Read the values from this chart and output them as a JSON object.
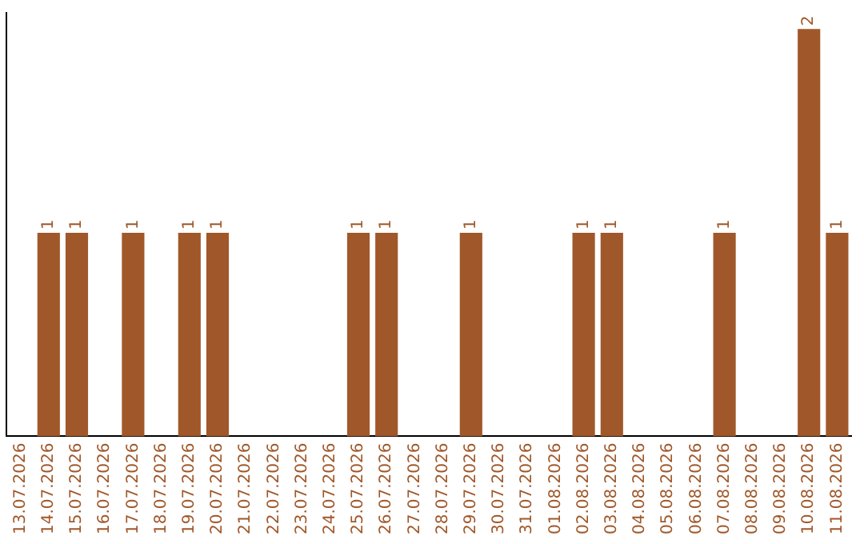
{
  "chart_data": {
    "type": "bar",
    "categories": [
      "13.07.2026",
      "14.07.2026",
      "15.07.2026",
      "16.07.2026",
      "17.07.2026",
      "18.07.2026",
      "19.07.2026",
      "20.07.2026",
      "21.07.2026",
      "22.07.2026",
      "23.07.2026",
      "24.07.2026",
      "25.07.2026",
      "26.07.2026",
      "27.07.2026",
      "28.07.2026",
      "29.07.2026",
      "30.07.2026",
      "31.07.2026",
      "01.08.2026",
      "02.08.2026",
      "03.08.2026",
      "04.08.2026",
      "05.08.2026",
      "06.08.2026",
      "07.08.2026",
      "08.08.2026",
      "09.08.2026",
      "10.08.2026",
      "11.08.2026"
    ],
    "values": [
      0,
      1,
      1,
      0,
      1,
      0,
      1,
      1,
      0,
      0,
      0,
      0,
      1,
      1,
      0,
      0,
      1,
      0,
      0,
      0,
      1,
      1,
      0,
      0,
      0,
      1,
      0,
      0,
      2,
      1
    ],
    "value_labels": [
      null,
      "1",
      "1",
      null,
      "1",
      null,
      "1",
      "1",
      null,
      null,
      null,
      null,
      "1",
      "1",
      null,
      null,
      "1",
      null,
      null,
      null,
      "1",
      "1",
      null,
      null,
      null,
      "1",
      null,
      null,
      "2",
      "1"
    ],
    "color": "#a0582a",
    "ylim": [
      0,
      2.08
    ],
    "tick_labels": "x",
    "grid": false,
    "legend": false
  }
}
